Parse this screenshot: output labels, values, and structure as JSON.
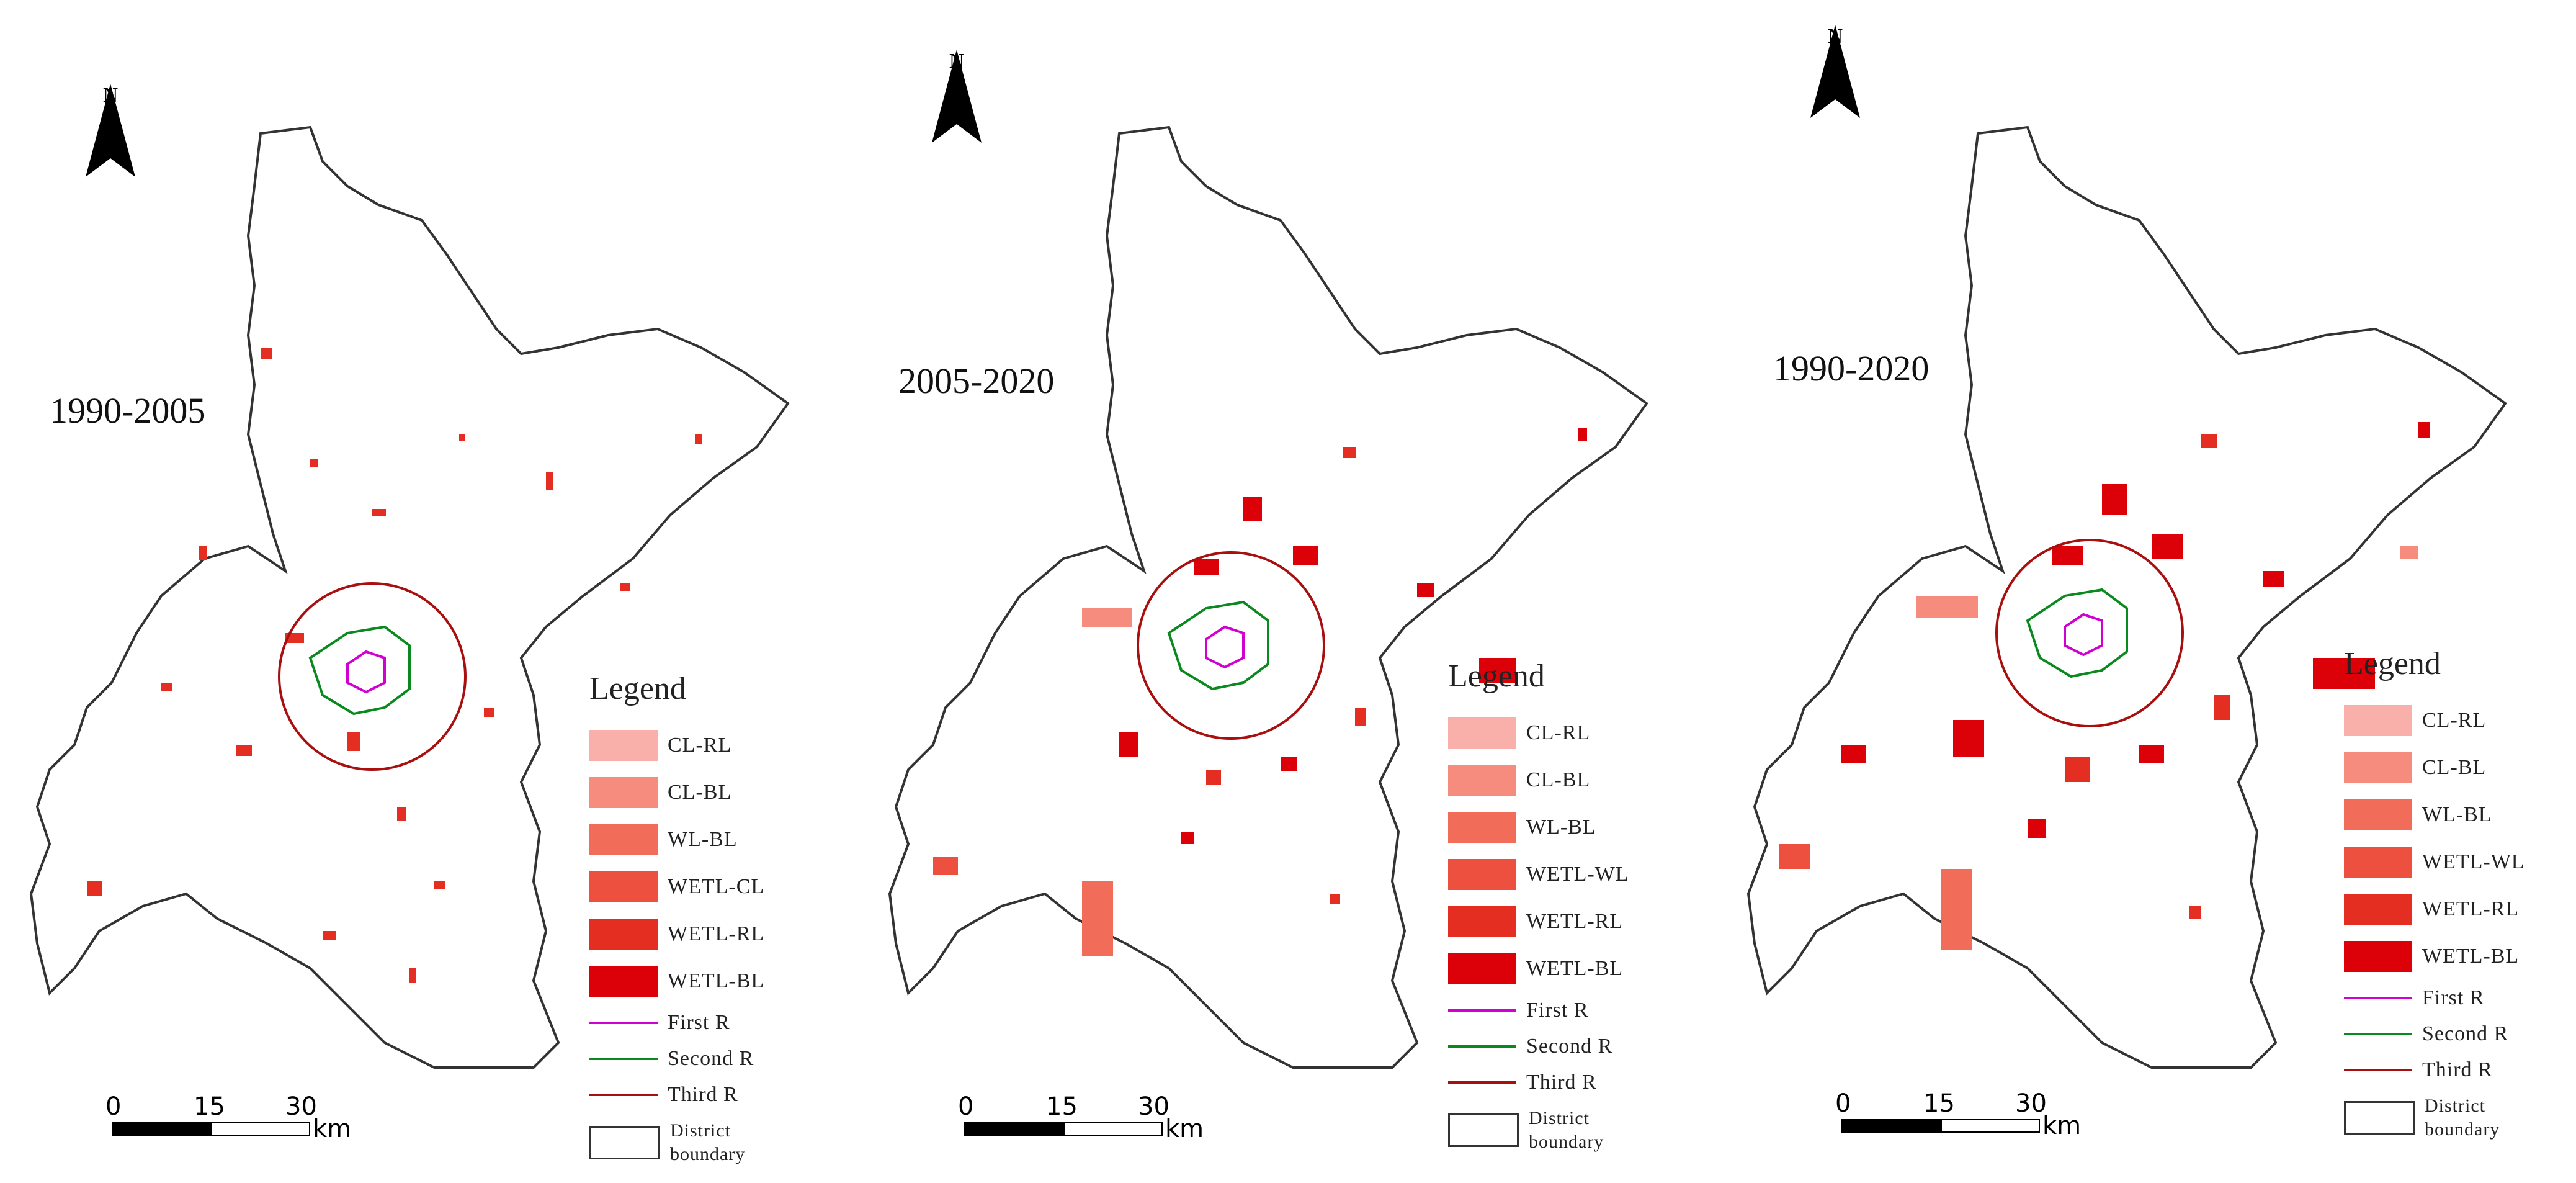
{
  "north_label": "N",
  "scale": {
    "ticks": [
      "0",
      "15",
      "30"
    ],
    "unit": "km"
  },
  "legend": {
    "title": "Legend",
    "routes": [
      {
        "label": "First R",
        "color": "#d000d0"
      },
      {
        "label": "Second R",
        "color": "#0a8a1e"
      },
      {
        "label": "Third R",
        "color": "#a81010"
      }
    ],
    "boundary": [
      "District",
      "boundary"
    ]
  },
  "panels": [
    {
      "period": "1990-2005",
      "classes": [
        {
          "label": "CL-RL",
          "color": "#f9b0aa"
        },
        {
          "label": "CL-BL",
          "color": "#f68c7e"
        },
        {
          "label": "WL-BL",
          "color": "#f26c5a"
        },
        {
          "label": "WETL-CL",
          "color": "#ee5040"
        },
        {
          "label": "WETL-RL",
          "color": "#e52e22"
        },
        {
          "label": "WETL-BL",
          "color": "#dc0008"
        }
      ]
    },
    {
      "period": "2005-2020",
      "classes": [
        {
          "label": "CL-RL",
          "color": "#f9b0aa"
        },
        {
          "label": "CL-BL",
          "color": "#f68c7e"
        },
        {
          "label": "WL-BL",
          "color": "#f26c5a"
        },
        {
          "label": "WETL-WL",
          "color": "#ee5040"
        },
        {
          "label": "WETL-RL",
          "color": "#e52e22"
        },
        {
          "label": "WETL-BL",
          "color": "#dc0008"
        }
      ]
    },
    {
      "period": "1990-2020",
      "classes": [
        {
          "label": "CL-RL",
          "color": "#f9b0aa"
        },
        {
          "label": "CL-BL",
          "color": "#f68c7e"
        },
        {
          "label": "WL-BL",
          "color": "#f26c5a"
        },
        {
          "label": "WETL-WL",
          "color": "#ee5040"
        },
        {
          "label": "WETL-RL",
          "color": "#e52e22"
        },
        {
          "label": "WETL-BL",
          "color": "#dc0008"
        }
      ]
    }
  ]
}
